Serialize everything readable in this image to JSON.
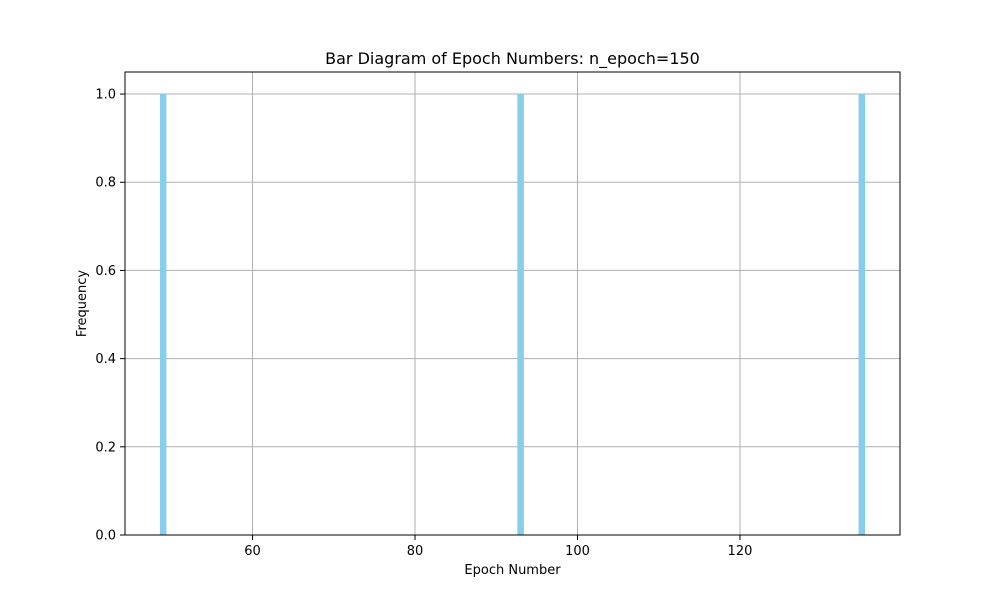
{
  "chart_data": {
    "type": "bar",
    "title": "Bar Diagram of Epoch Numbers: n_epoch=150",
    "xlabel": "Epoch Number",
    "ylabel": "Frequency",
    "x": [
      49,
      93,
      135
    ],
    "values": [
      1,
      1,
      1
    ],
    "xlim": [
      44.3,
      139.7
    ],
    "ylim": [
      0,
      1.05
    ],
    "xticks": [
      60,
      80,
      100,
      120
    ],
    "xtick_labels": [
      "60",
      "80",
      "100",
      "120"
    ],
    "yticks": [
      0,
      0.2,
      0.4,
      0.6,
      0.8,
      1.0
    ],
    "ytick_labels": [
      "0.0",
      "0.2",
      "0.4",
      "0.6",
      "0.8",
      "1.0"
    ],
    "bar_width": 0.8,
    "grid": true,
    "colors": {
      "bar": "#87ceeb",
      "grid": "#b0b0b0",
      "axes": "#000000"
    }
  }
}
